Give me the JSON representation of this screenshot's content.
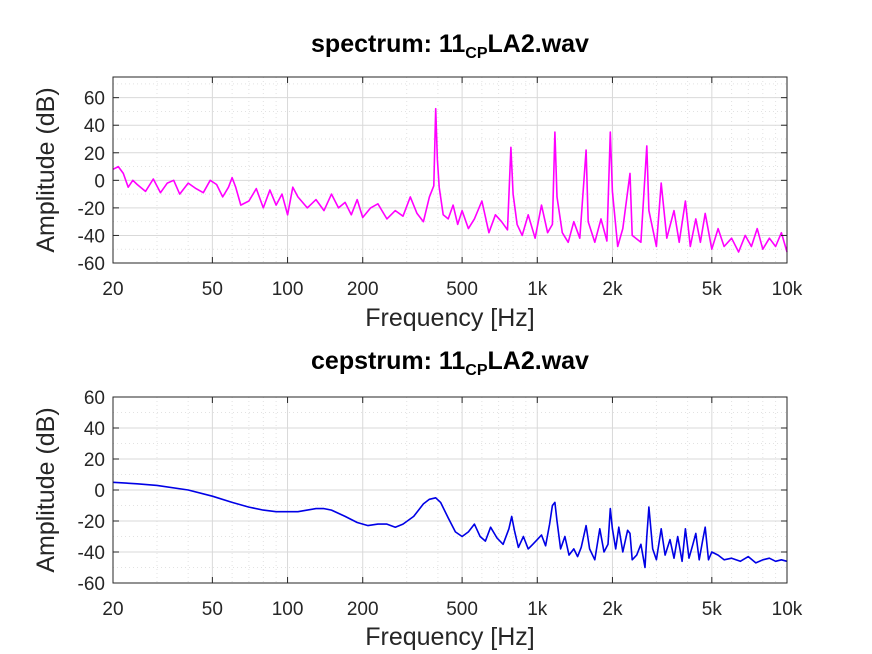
{
  "chart_data": [
    {
      "type": "line",
      "title_main": "spectrum: 11",
      "title_sub": "CP",
      "title_suffix": "LA2.wav",
      "xlabel": "Frequency [Hz]",
      "ylabel": "Amplitude (dB)",
      "xscale": "log",
      "xlim": [
        20,
        10000
      ],
      "ylim": [
        -60,
        75
      ],
      "xticks": [
        20,
        50,
        100,
        200,
        500,
        1000,
        2000,
        5000,
        10000
      ],
      "xtick_labels": [
        "20",
        "50",
        "100",
        "200",
        "500",
        "1k",
        "2k",
        "5k",
        "10k"
      ],
      "yticks": [
        -60,
        -40,
        -20,
        0,
        20,
        40,
        60
      ],
      "ytick_labels": [
        "-60",
        "-40",
        "-20",
        "0",
        "20",
        "40",
        "60"
      ],
      "grid": true,
      "series": [
        {
          "color": "#ff00ff",
          "x": [
            20,
            21,
            22,
            23,
            24,
            25,
            27,
            29,
            31,
            33,
            35,
            37,
            40,
            43,
            46,
            49,
            52,
            55,
            58,
            60,
            62,
            65,
            70,
            75,
            80,
            85,
            90,
            95,
            100,
            105,
            110,
            120,
            130,
            140,
            150,
            160,
            170,
            180,
            190,
            200,
            215,
            230,
            250,
            270,
            290,
            310,
            330,
            350,
            370,
            385,
            392,
            398,
            405,
            420,
            440,
            460,
            480,
            500,
            530,
            560,
            600,
            640,
            680,
            720,
            760,
            784,
            800,
            830,
            870,
            920,
            980,
            1040,
            1100,
            1150,
            1176,
            1200,
            1260,
            1330,
            1400,
            1480,
            1568,
            1600,
            1700,
            1800,
            1900,
            1960,
            2000,
            2100,
            2200,
            2352,
            2400,
            2600,
            2744,
            2800,
            3000,
            3136,
            3300,
            3528,
            3700,
            3920,
            4100,
            4312,
            4500,
            4704,
            5000,
            5300,
            5600,
            6000,
            6400,
            6800,
            7200,
            7600,
            8000,
            8500,
            9000,
            9500,
            10000
          ],
          "y": [
            8,
            10,
            5,
            -5,
            0,
            -3,
            -8,
            1,
            -9,
            -2,
            0,
            -10,
            -2,
            -6,
            -9,
            0,
            -3,
            -12,
            -5,
            2,
            -5,
            -18,
            -15,
            -6,
            -20,
            -7,
            -18,
            -10,
            -25,
            -5,
            -12,
            -20,
            -14,
            -22,
            -10,
            -20,
            -16,
            -25,
            -14,
            -27,
            -20,
            -17,
            -28,
            -22,
            -26,
            -12,
            -24,
            -30,
            -12,
            -4,
            52,
            15,
            -5,
            -25,
            -28,
            -18,
            -32,
            -22,
            -35,
            -28,
            -15,
            -38,
            -25,
            -30,
            -36,
            24,
            -10,
            -32,
            -40,
            -25,
            -42,
            -18,
            -38,
            -32,
            35,
            -12,
            -38,
            -45,
            -30,
            -42,
            22,
            -30,
            -45,
            -28,
            -44,
            35,
            -8,
            -48,
            -35,
            5,
            -40,
            -45,
            25,
            -22,
            -48,
            -2,
            -42,
            -22,
            -45,
            -15,
            -48,
            -28,
            -45,
            -24,
            -50,
            -35,
            -48,
            -42,
            -52,
            -40,
            -48,
            -35,
            -50,
            -42,
            -48,
            -38,
            -52
          ]
        }
      ]
    },
    {
      "type": "line",
      "title_main": "cepstrum: 11",
      "title_sub": "CP",
      "title_suffix": "LA2.wav",
      "xlabel": "Frequency [Hz]",
      "ylabel": "Amplitude (dB)",
      "xscale": "log",
      "xlim": [
        20,
        10000
      ],
      "ylim": [
        -60,
        60
      ],
      "xticks": [
        20,
        50,
        100,
        200,
        500,
        1000,
        2000,
        5000,
        10000
      ],
      "xtick_labels": [
        "20",
        "50",
        "100",
        "200",
        "500",
        "1k",
        "2k",
        "5k",
        "10k"
      ],
      "yticks": [
        -60,
        -40,
        -20,
        0,
        20,
        40,
        60
      ],
      "ytick_labels": [
        "-60",
        "-40",
        "-20",
        "0",
        "20",
        "40",
        "60"
      ],
      "grid": true,
      "series": [
        {
          "color": "#0000e6",
          "x": [
            20,
            25,
            30,
            40,
            50,
            60,
            70,
            80,
            90,
            100,
            110,
            120,
            130,
            140,
            150,
            170,
            190,
            210,
            230,
            250,
            270,
            290,
            320,
            350,
            370,
            392,
            410,
            440,
            470,
            500,
            530,
            560,
            590,
            620,
            650,
            690,
            730,
            770,
            790,
            810,
            840,
            880,
            920,
            960,
            1000,
            1040,
            1080,
            1120,
            1150,
            1176,
            1200,
            1240,
            1290,
            1340,
            1400,
            1450,
            1500,
            1568,
            1620,
            1700,
            1780,
            1850,
            1920,
            1960,
            2000,
            2060,
            2120,
            2200,
            2300,
            2352,
            2400,
            2500,
            2600,
            2700,
            2744,
            2800,
            2900,
            3000,
            3136,
            3250,
            3400,
            3528,
            3650,
            3800,
            3920,
            4050,
            4200,
            4312,
            4450,
            4600,
            4704,
            4850,
            5000,
            5300,
            5600,
            6000,
            6500,
            7000,
            7500,
            8000,
            8500,
            9000,
            9500,
            10000
          ],
          "y": [
            5,
            4,
            3,
            0,
            -4,
            -8,
            -11,
            -13,
            -14,
            -14,
            -14,
            -13,
            -12,
            -12,
            -13,
            -17,
            -21,
            -23,
            -22,
            -22,
            -24,
            -22,
            -17,
            -9,
            -6,
            -5,
            -8,
            -18,
            -27,
            -30,
            -27,
            -22,
            -30,
            -33,
            -24,
            -31,
            -35,
            -25,
            -17,
            -26,
            -37,
            -30,
            -38,
            -35,
            -32,
            -29,
            -36,
            -22,
            -10,
            -8,
            -20,
            -38,
            -30,
            -42,
            -38,
            -43,
            -37,
            -23,
            -38,
            -45,
            -25,
            -40,
            -35,
            -12,
            -25,
            -38,
            -24,
            -40,
            -26,
            -28,
            -45,
            -42,
            -35,
            -50,
            -30,
            -11,
            -38,
            -45,
            -25,
            -42,
            -32,
            -44,
            -30,
            -46,
            -25,
            -44,
            -35,
            -28,
            -45,
            -32,
            -24,
            -45,
            -40,
            -42,
            -45,
            -44,
            -46,
            -43,
            -47,
            -45,
            -44,
            -46,
            -45,
            -46
          ]
        }
      ]
    }
  ]
}
